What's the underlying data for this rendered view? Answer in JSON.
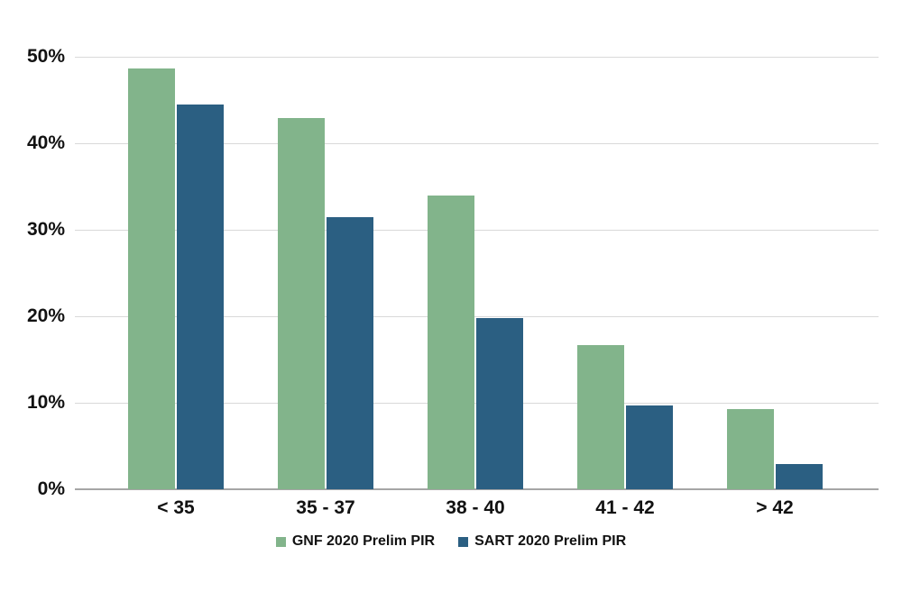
{
  "chart_data": {
    "type": "bar",
    "title": "",
    "xlabel": "",
    "ylabel": "",
    "categories": [
      "< 35",
      "35 - 37",
      "38 - 40",
      "41 - 42",
      "> 42"
    ],
    "series": [
      {
        "name": "GNF 2020 Prelim PIR",
        "color": "#82b48b",
        "values": [
          48.6,
          42.9,
          34.0,
          16.7,
          9.3
        ]
      },
      {
        "name": "SART 2020 Prelim PIR",
        "color": "#2b5f82",
        "values": [
          44.5,
          31.5,
          19.8,
          9.7,
          2.9
        ]
      }
    ],
    "ylim": [
      0,
      50
    ],
    "y_tick_step": 10,
    "y_tick_labels": [
      "0%",
      "10%",
      "20%",
      "30%",
      "40%",
      "50%"
    ],
    "grid": true,
    "legend_position": "bottom",
    "colors": {
      "background": "#ffffff",
      "gridline": "#d9d9d9",
      "axis_line": "#a6a6a6",
      "text": "#121212"
    }
  }
}
